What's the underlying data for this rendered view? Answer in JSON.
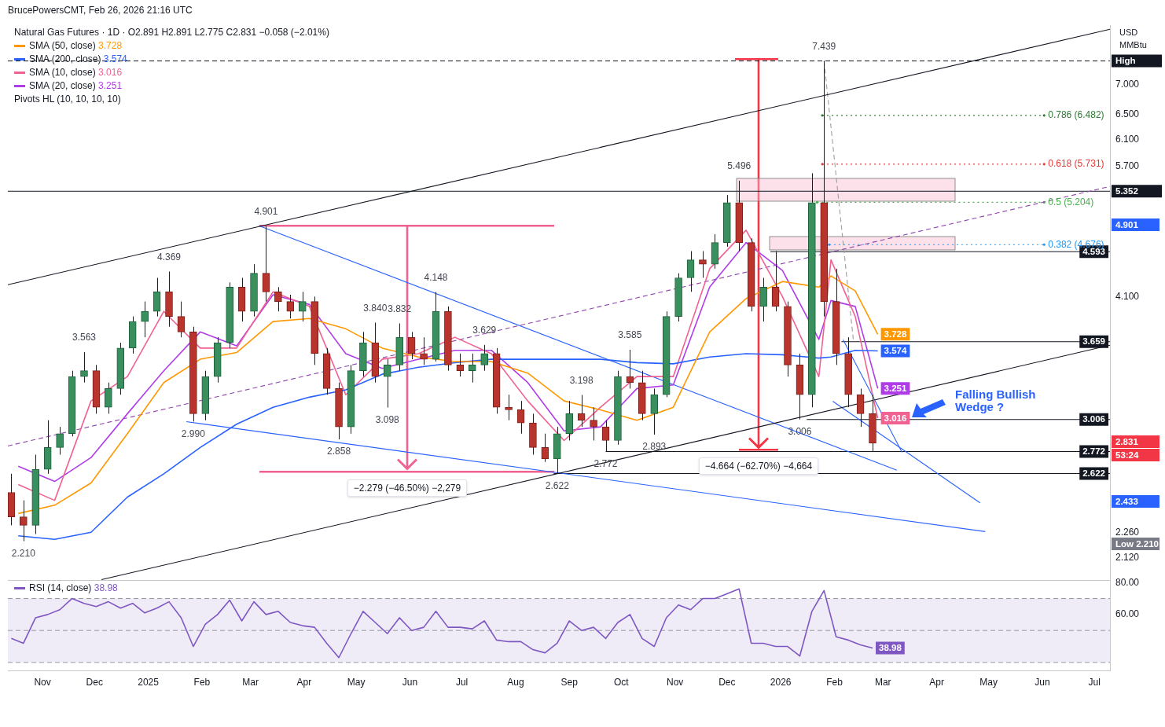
{
  "chart_data": [
    {
      "type": "candlestick",
      "title": "Natural Gas Futures · 1D · O2.891 H2.891 L2.775 C2.831 −0.058 (−2.01%)",
      "subtitle": "BrucePowersCMT, Feb 26, 2026 21:16 UTC",
      "ylabel": "USD MMBtu",
      "x": [
        "2024-10-14",
        "2024-10-21",
        "2024-10-28",
        "2024-11-04",
        "2024-11-11",
        "2024-11-18",
        "2024-11-25",
        "2024-12-02",
        "2024-12-09",
        "2024-12-16",
        "2024-12-23",
        "2024-12-30",
        "2025-01-06",
        "2025-01-13",
        "2025-01-20",
        "2025-01-27",
        "2025-02-03",
        "2025-02-10",
        "2025-02-17",
        "2025-02-24",
        "2025-03-03",
        "2025-03-10",
        "2025-03-17",
        "2025-03-24",
        "2025-03-31",
        "2025-04-07",
        "2025-04-14",
        "2025-04-21",
        "2025-04-28",
        "2025-05-05",
        "2025-05-12",
        "2025-05-19",
        "2025-05-26",
        "2025-06-02",
        "2025-06-09",
        "2025-06-16",
        "2025-06-23",
        "2025-06-30",
        "2025-07-07",
        "2025-07-14",
        "2025-07-21",
        "2025-07-28",
        "2025-08-04",
        "2025-08-11",
        "2025-08-18",
        "2025-08-25",
        "2025-09-01",
        "2025-09-08",
        "2025-09-15",
        "2025-09-22",
        "2025-09-29",
        "2025-10-06",
        "2025-10-13",
        "2025-10-20",
        "2025-10-27",
        "2025-11-03",
        "2025-11-10",
        "2025-11-17",
        "2025-11-24",
        "2025-12-01",
        "2025-12-08",
        "2025-12-15",
        "2025-12-22",
        "2025-12-29",
        "2026-01-05",
        "2026-01-12",
        "2026-01-19",
        "2026-01-26",
        "2026-02-02",
        "2026-02-09",
        "2026-02-16",
        "2026-02-23"
      ],
      "ohlc": [
        [
          2.5,
          2.62,
          2.3,
          2.35
        ],
        [
          2.35,
          2.45,
          2.21,
          2.3
        ],
        [
          2.3,
          2.75,
          2.25,
          2.65
        ],
        [
          2.65,
          3.0,
          2.62,
          2.8
        ],
        [
          2.8,
          2.95,
          2.75,
          2.9
        ],
        [
          2.9,
          3.4,
          2.88,
          3.35
        ],
        [
          3.35,
          3.563,
          3.3,
          3.4
        ],
        [
          3.4,
          3.45,
          3.05,
          3.1
        ],
        [
          3.1,
          3.3,
          3.05,
          3.25
        ],
        [
          3.25,
          3.65,
          3.2,
          3.6
        ],
        [
          3.6,
          3.9,
          3.55,
          3.85
        ],
        [
          3.85,
          4.05,
          3.7,
          3.95
        ],
        [
          3.95,
          4.3,
          3.9,
          4.15
        ],
        [
          4.15,
          4.369,
          3.8,
          3.9
        ],
        [
          3.9,
          4.05,
          3.7,
          3.75
        ],
        [
          3.75,
          3.8,
          2.99,
          3.05
        ],
        [
          3.05,
          3.4,
          3.0,
          3.35
        ],
        [
          3.35,
          3.7,
          3.3,
          3.65
        ],
        [
          3.65,
          4.25,
          3.6,
          4.2
        ],
        [
          4.2,
          4.3,
          3.85,
          3.95
        ],
        [
          3.95,
          4.45,
          3.9,
          4.35
        ],
        [
          4.35,
          4.901,
          4.05,
          4.15
        ],
        [
          4.15,
          4.2,
          3.95,
          4.05
        ],
        [
          4.05,
          4.12,
          3.88,
          3.95
        ],
        [
          3.95,
          4.15,
          3.85,
          4.05
        ],
        [
          4.05,
          4.1,
          3.45,
          3.55
        ],
        [
          3.55,
          3.6,
          3.2,
          3.25
        ],
        [
          3.25,
          3.3,
          2.858,
          2.95
        ],
        [
          2.95,
          3.45,
          2.9,
          3.4
        ],
        [
          3.4,
          3.75,
          3.35,
          3.65
        ],
        [
          3.65,
          3.84,
          3.3,
          3.35
        ],
        [
          3.35,
          3.5,
          3.098,
          3.45
        ],
        [
          3.45,
          3.832,
          3.4,
          3.7
        ],
        [
          3.7,
          3.75,
          3.5,
          3.55
        ],
        [
          3.55,
          3.7,
          3.45,
          3.5
        ],
        [
          3.5,
          4.148,
          3.48,
          3.95
        ],
        [
          3.95,
          4.0,
          3.4,
          3.45
        ],
        [
          3.45,
          3.55,
          3.35,
          3.4
        ],
        [
          3.4,
          3.55,
          3.3,
          3.45
        ],
        [
          3.45,
          3.629,
          3.4,
          3.55
        ],
        [
          3.55,
          3.6,
          3.05,
          3.1
        ],
        [
          3.1,
          3.2,
          3.0,
          3.08
        ],
        [
          3.08,
          3.15,
          2.9,
          2.98
        ],
        [
          2.98,
          3.05,
          2.75,
          2.8
        ],
        [
          2.8,
          2.9,
          2.7,
          2.72
        ],
        [
          2.72,
          2.95,
          2.622,
          2.9
        ],
        [
          2.9,
          3.15,
          2.85,
          3.05
        ],
        [
          3.05,
          3.198,
          2.95,
          3.0
        ],
        [
          3.0,
          3.1,
          2.85,
          2.95
        ],
        [
          2.95,
          3.0,
          2.772,
          2.85
        ],
        [
          2.85,
          3.4,
          2.82,
          3.35
        ],
        [
          3.35,
          3.585,
          3.25,
          3.3
        ],
        [
          3.3,
          3.4,
          3.0,
          3.05
        ],
        [
          3.05,
          3.25,
          2.893,
          3.2
        ],
        [
          3.2,
          3.95,
          3.18,
          3.9
        ],
        [
          3.9,
          4.35,
          3.85,
          4.3
        ],
        [
          4.3,
          4.6,
          4.15,
          4.5
        ],
        [
          4.5,
          4.6,
          4.3,
          4.45
        ],
        [
          4.45,
          4.8,
          4.4,
          4.7
        ],
        [
          4.7,
          5.3,
          4.65,
          5.2
        ],
        [
          5.2,
          5.496,
          4.6,
          4.7
        ],
        [
          4.7,
          4.75,
          3.95,
          4.0
        ],
        [
          4.0,
          4.3,
          3.85,
          4.2
        ],
        [
          4.2,
          4.6,
          3.95,
          4.0
        ],
        [
          4.0,
          4.05,
          3.35,
          3.45
        ],
        [
          3.45,
          3.55,
          3.006,
          3.2
        ],
        [
          3.2,
          5.6,
          3.1,
          5.2
        ],
        [
          5.2,
          7.439,
          3.9,
          4.05
        ],
        [
          4.05,
          4.4,
          3.45,
          3.55
        ],
        [
          3.55,
          3.7,
          3.1,
          3.2
        ],
        [
          3.2,
          3.25,
          2.95,
          3.05
        ],
        [
          3.05,
          3.2,
          2.775,
          2.831
        ]
      ],
      "series": [
        {
          "name": "SMA (50, close)",
          "type": "line",
          "color": "#ff9800",
          "x": [
            "2024-10-18",
            "2024-11-08",
            "2024-11-29",
            "2024-12-20",
            "2025-01-10",
            "2025-01-31",
            "2025-02-21",
            "2025-03-14",
            "2025-04-04",
            "2025-04-25",
            "2025-05-16",
            "2025-06-06",
            "2025-06-27",
            "2025-07-18",
            "2025-08-08",
            "2025-08-29",
            "2025-09-19",
            "2025-10-10",
            "2025-10-31",
            "2025-11-21",
            "2025-12-12",
            "2026-01-02",
            "2026-01-23",
            "2026-01-30",
            "2026-02-13",
            "2026-02-26"
          ],
          "values": [
            2.37,
            2.42,
            2.56,
            2.9,
            3.3,
            3.5,
            3.56,
            3.85,
            3.88,
            3.78,
            3.6,
            3.52,
            3.48,
            3.48,
            3.38,
            3.15,
            3.08,
            3.0,
            3.1,
            3.75,
            4.08,
            4.26,
            4.2,
            4.32,
            4.16,
            3.728
          ],
          "value_labels": [
            null,
            null,
            null,
            null,
            null,
            null,
            null,
            null,
            null,
            null,
            null,
            null,
            null,
            null,
            null,
            null,
            null,
            null,
            null,
            null,
            null,
            null,
            null,
            null,
            null,
            "3.728"
          ]
        },
        {
          "name": "SMA (200, close)",
          "type": "line",
          "color": "#2962ff",
          "x": [
            "2024-10-18",
            "2024-11-08",
            "2024-11-29",
            "2024-12-20",
            "2025-01-10",
            "2025-01-31",
            "2025-02-21",
            "2025-03-14",
            "2025-04-04",
            "2025-04-25",
            "2025-05-16",
            "2025-06-06",
            "2025-06-27",
            "2025-07-18",
            "2025-08-08",
            "2025-08-29",
            "2025-09-19",
            "2025-10-10",
            "2025-10-31",
            "2025-11-21",
            "2025-12-12",
            "2026-01-02",
            "2026-01-23",
            "2026-01-30",
            "2026-02-13",
            "2026-02-26"
          ],
          "values": [
            2.24,
            2.22,
            2.26,
            2.47,
            2.62,
            2.8,
            2.97,
            3.1,
            3.18,
            3.24,
            3.37,
            3.43,
            3.47,
            3.5,
            3.5,
            3.5,
            3.5,
            3.47,
            3.46,
            3.52,
            3.55,
            3.54,
            3.51,
            3.52,
            3.58,
            3.574
          ],
          "value_labels": [
            null,
            null,
            null,
            null,
            null,
            null,
            null,
            null,
            null,
            null,
            null,
            null,
            null,
            null,
            null,
            null,
            null,
            null,
            null,
            null,
            null,
            null,
            null,
            null,
            null,
            "3.574"
          ]
        },
        {
          "name": "SMA (10, close)",
          "type": "line",
          "color": "#f06292",
          "x": [
            "2024-10-18",
            "2024-11-08",
            "2024-11-29",
            "2024-12-20",
            "2025-01-10",
            "2025-01-31",
            "2025-02-21",
            "2025-03-14",
            "2025-04-04",
            "2025-04-25",
            "2025-05-16",
            "2025-06-06",
            "2025-06-27",
            "2025-07-18",
            "2025-08-08",
            "2025-08-29",
            "2025-09-19",
            "2025-10-10",
            "2025-10-31",
            "2025-11-21",
            "2025-12-12",
            "2026-01-02",
            "2026-01-23",
            "2026-01-30",
            "2026-02-13",
            "2026-02-26"
          ],
          "values": [
            2.55,
            2.45,
            3.15,
            3.35,
            3.95,
            3.6,
            3.6,
            4.15,
            4.0,
            3.2,
            3.5,
            3.55,
            3.7,
            3.55,
            3.15,
            2.85,
            3.1,
            3.35,
            3.35,
            4.4,
            4.85,
            4.1,
            3.35,
            4.5,
            3.9,
            3.016
          ],
          "value_labels": [
            null,
            null,
            null,
            null,
            null,
            null,
            null,
            null,
            null,
            null,
            null,
            null,
            null,
            null,
            null,
            null,
            null,
            null,
            null,
            null,
            null,
            null,
            null,
            null,
            null,
            "3.016"
          ]
        },
        {
          "name": "SMA (20, close)",
          "type": "line",
          "color": "#b03ce8",
          "x": [
            "2024-10-18",
            "2024-11-08",
            "2024-11-29",
            "2024-12-20",
            "2025-01-10",
            "2025-01-31",
            "2025-02-21",
            "2025-03-14",
            "2025-04-04",
            "2025-04-25",
            "2025-05-16",
            "2025-06-06",
            "2025-06-27",
            "2025-07-18",
            "2025-08-08",
            "2025-08-29",
            "2025-09-19",
            "2025-10-10",
            "2025-10-31",
            "2025-11-21",
            "2025-12-12",
            "2026-01-02",
            "2026-01-23",
            "2026-01-30",
            "2026-02-13",
            "2026-02-26"
          ],
          "values": [
            2.67,
            2.57,
            2.73,
            3.05,
            3.4,
            3.75,
            3.62,
            4.12,
            4.02,
            3.55,
            3.42,
            3.5,
            3.58,
            3.58,
            3.3,
            2.92,
            2.95,
            3.25,
            3.28,
            4.2,
            4.7,
            4.38,
            3.68,
            4.06,
            4.0,
            3.251
          ],
          "value_labels": [
            null,
            null,
            null,
            null,
            null,
            null,
            null,
            null,
            null,
            null,
            null,
            null,
            null,
            null,
            null,
            null,
            null,
            null,
            null,
            null,
            null,
            null,
            null,
            null,
            null,
            "3.251"
          ]
        },
        {
          "type": "line",
          "color": "#131722",
          "x": [
            "2024-10-12",
            "2026-07-10"
          ],
          "values": [
            4.225,
            8.06
          ]
        },
        {
          "type": "line",
          "color": "#131722",
          "x": [
            "2024-12-05",
            "2026-07-10"
          ],
          "values": [
            2.005,
            3.626
          ]
        },
        {
          "type": "line",
          "color": "#8e44ad",
          "line_style": "dashed",
          "x": [
            "2024-10-12",
            "2026-07-10"
          ],
          "values": [
            2.811,
            5.417
          ]
        },
        {
          "type": "line",
          "color": "#2962ff",
          "x": [
            "2025-03-06",
            "2026-03-09"
          ],
          "values": [
            4.904,
            2.644
          ]
        },
        {
          "type": "line",
          "color": "#2962ff",
          "x": [
            "2025-01-23",
            "2026-04-29"
          ],
          "values": [
            2.989,
            2.264
          ]
        },
        {
          "type": "line",
          "color": "#2962ff",
          "x": [
            "2026-01-31",
            "2026-04-26"
          ],
          "values": [
            3.148,
            2.435
          ]
        },
        {
          "type": "line",
          "color": "#2962ff",
          "x": [
            "2026-02-06",
            "2026-03-12"
          ],
          "values": [
            3.677,
            2.767
          ]
        },
        {
          "type": "line",
          "color": "#9e9e9e",
          "line_style": "dashed",
          "x": [
            "2026-01-26",
            "2026-02-12"
          ],
          "values": [
            7.439,
            3.66
          ]
        },
        {
          "type": "line",
          "color": "#131722",
          "x": [
            "2025-12-26",
            "2026-07-10"
          ],
          "values": [
            4.593,
            4.593
          ],
          "value_labels": [
            null,
            "4.593"
          ]
        },
        {
          "type": "line",
          "color": "#131722",
          "x": [
            "2026-02-05",
            "2026-07-10"
          ],
          "values": [
            3.659,
            3.659
          ],
          "value_labels": [
            null,
            "3.659"
          ]
        },
        {
          "type": "line",
          "color": "#131722",
          "x": [
            "2026-01-16",
            "2026-07-10"
          ],
          "values": [
            3.006,
            3.006
          ],
          "value_labels": [
            null,
            "3.006"
          ]
        },
        {
          "type": "line",
          "color": "#131722",
          "x": [
            "2025-09-22",
            "2026-07-10"
          ],
          "values": [
            2.772,
            2.772
          ],
          "value_labels": [
            null,
            "2.772"
          ]
        },
        {
          "type": "line",
          "color": "#131722",
          "x": [
            "2025-08-23",
            "2026-07-10"
          ],
          "values": [
            2.622,
            2.622
          ],
          "value_labels": [
            null,
            "2.622"
          ]
        },
        {
          "type": "line",
          "color": "#2e7d32",
          "line_style": "dotted",
          "x": [
            "2026-01-25",
            "2026-06-02"
          ],
          "values": [
            6.482,
            6.482
          ],
          "value_labels": [
            null,
            "0.786 (6.482)"
          ]
        },
        {
          "type": "line",
          "color": "#e53935",
          "line_style": "dotted",
          "x": [
            "2026-01-25",
            "2026-06-02"
          ],
          "values": [
            5.731,
            5.731
          ],
          "value_labels": [
            null,
            "0.618 (5.731)"
          ]
        },
        {
          "type": "line",
          "color": "#4caf50",
          "line_style": "dotted",
          "x": [
            "2026-01-22",
            "2026-06-02"
          ],
          "values": [
            5.204,
            5.204
          ],
          "value_labels": [
            null,
            "0.5 (5.204)"
          ]
        },
        {
          "type": "line",
          "color": "#2196f3",
          "line_style": "dotted",
          "x": [
            "2026-01-29",
            "2026-06-02"
          ],
          "values": [
            4.676,
            4.676
          ],
          "value_labels": [
            null,
            "0.382 (4.676)"
          ]
        }
      ],
      "ref_lines": [
        {
          "axis": "y",
          "value": 7.439,
          "label": "High",
          "color": "#131722",
          "line_style": "dashed"
        },
        {
          "axis": "y",
          "value": 5.352,
          "label": "5.352",
          "color": "#131722",
          "line_style": "solid"
        }
      ],
      "annotations": [
        "Pivots HL (10, 10, 10, 10)",
        "−2.279 (−46.50%) −2,279",
        "−4.664 (−62.70%) −4,664",
        "Falling Bullish Wedge ?",
        "4.901",
        "2.831",
        "53:24",
        "2.433",
        "Low 2.210",
        {
          "text": "2.210",
          "x": "2024-10-21",
          "y": 2.21
        },
        {
          "text": "3.563",
          "x": "2024-11-25",
          "y": 3.563
        },
        {
          "text": "4.369",
          "x": "2025-01-13",
          "y": 4.369
        },
        {
          "text": "2.990",
          "x": "2025-01-27",
          "y": 2.99
        },
        {
          "text": "4.901",
          "x": "2025-03-10",
          "y": 4.901
        },
        {
          "text": "2.858",
          "x": "2025-04-21",
          "y": 2.858
        },
        {
          "text": "3.840",
          "x": "2025-05-12",
          "y": 3.84
        },
        {
          "text": "3.098",
          "x": "2025-05-19",
          "y": 3.098
        },
        {
          "text": "3.832",
          "x": "2025-05-26",
          "y": 3.832
        },
        {
          "text": "4.148",
          "x": "2025-06-16",
          "y": 4.148
        },
        {
          "text": "3.629",
          "x": "2025-07-14",
          "y": 3.629
        },
        {
          "text": "2.622",
          "x": "2025-08-25",
          "y": 2.622
        },
        {
          "text": "3.198",
          "x": "2025-09-08",
          "y": 3.198
        },
        {
          "text": "2.772",
          "x": "2025-09-22",
          "y": 2.772
        },
        {
          "text": "3.585",
          "x": "2025-10-06",
          "y": 3.585
        },
        {
          "text": "2.893",
          "x": "2025-10-20",
          "y": 2.893
        },
        {
          "text": "5.496",
          "x": "2025-12-08",
          "y": 5.496
        },
        {
          "text": "3.006",
          "x": "2026-01-12",
          "y": 3.006
        },
        {
          "text": "7.439",
          "x": "2026-01-26",
          "y": 7.439
        }
      ],
      "xlim": [
        "2024-10-12",
        "2026-07-10"
      ],
      "ylim": [
        2.0,
        8.14
      ],
      "yticks": [
        {
          "value": 7,
          "label": "7.000"
        },
        {
          "value": 6.5,
          "label": "6.500"
        },
        {
          "value": 6.1,
          "label": "6.100"
        },
        {
          "value": 5.7,
          "label": "5.700"
        },
        {
          "value": 4.1,
          "label": "4.100"
        },
        {
          "value": 2.26,
          "label": "2.260"
        },
        {
          "value": 2.12,
          "label": "2.120"
        }
      ],
      "log": true,
      "grid": false,
      "legend": "top left",
      "tick_labels": "y"
    },
    {
      "type": "line",
      "x": [
        "2024-10-14",
        "2024-10-21",
        "2024-10-28",
        "2024-11-04",
        "2024-11-11",
        "2024-11-18",
        "2024-11-25",
        "2024-12-02",
        "2024-12-09",
        "2024-12-16",
        "2024-12-23",
        "2024-12-30",
        "2025-01-06",
        "2025-01-13",
        "2025-01-20",
        "2025-01-27",
        "2025-02-03",
        "2025-02-10",
        "2025-02-17",
        "2025-02-24",
        "2025-03-03",
        "2025-03-10",
        "2025-03-17",
        "2025-03-24",
        "2025-03-31",
        "2025-04-07",
        "2025-04-14",
        "2025-04-21",
        "2025-04-28",
        "2025-05-05",
        "2025-05-12",
        "2025-05-19",
        "2025-05-26",
        "2025-06-02",
        "2025-06-09",
        "2025-06-16",
        "2025-06-23",
        "2025-06-30",
        "2025-07-07",
        "2025-07-14",
        "2025-07-21",
        "2025-07-28",
        "2025-08-04",
        "2025-08-11",
        "2025-08-18",
        "2025-08-25",
        "2025-09-01",
        "2025-09-08",
        "2025-09-15",
        "2025-09-22",
        "2025-09-29",
        "2025-10-06",
        "2025-10-13",
        "2025-10-20",
        "2025-10-27",
        "2025-11-03",
        "2025-11-10",
        "2025-11-17",
        "2025-11-24",
        "2025-12-01",
        "2025-12-08",
        "2025-12-15",
        "2025-12-22",
        "2025-12-29",
        "2026-01-05",
        "2026-01-12",
        "2026-01-19",
        "2026-01-26",
        "2026-02-02",
        "2026-02-09",
        "2026-02-16",
        "2026-02-23"
      ],
      "series": [
        {
          "name": "RSI (14, close)",
          "color": "#7e57c2",
          "values": [
            45,
            42,
            58,
            60,
            63,
            70,
            67,
            65,
            68,
            64,
            67,
            61,
            64,
            68,
            58,
            40,
            54,
            60,
            69,
            56,
            68,
            60,
            62,
            55,
            53,
            52,
            42,
            33,
            48,
            62,
            55,
            48,
            58,
            50,
            52,
            62,
            52,
            52,
            51,
            56,
            44,
            43,
            43,
            38,
            36,
            42,
            56,
            50,
            52,
            45,
            55,
            60,
            45,
            40,
            58,
            66,
            63,
            70,
            70,
            73,
            76,
            42,
            42,
            40,
            40,
            34,
            62,
            75,
            46,
            44,
            41,
            38.98
          ],
          "value_labels": [
            null,
            null,
            null,
            null,
            null,
            null,
            null,
            null,
            null,
            null,
            null,
            null,
            null,
            null,
            null,
            null,
            null,
            null,
            null,
            null,
            null,
            null,
            null,
            null,
            null,
            null,
            null,
            null,
            null,
            null,
            null,
            null,
            null,
            null,
            null,
            null,
            null,
            null,
            null,
            null,
            null,
            null,
            null,
            null,
            null,
            null,
            null,
            null,
            null,
            null,
            null,
            null,
            null,
            null,
            null,
            null,
            null,
            null,
            null,
            null,
            null,
            null,
            null,
            null,
            null,
            null,
            null,
            null,
            null,
            null,
            null,
            "38.98"
          ]
        }
      ],
      "bands": [
        {
          "axis": "y",
          "from": 30,
          "to": 70,
          "color": "#efebf7"
        }
      ],
      "ref_lines": [
        {
          "axis": "y",
          "value": 70,
          "color": "#9598a1",
          "line_style": "dashed"
        },
        {
          "axis": "y",
          "value": 50,
          "color": "#9598a1",
          "line_style": "dashed"
        },
        {
          "axis": "y",
          "value": 30,
          "color": "#9598a1",
          "line_style": "dashed"
        }
      ],
      "xlim": [
        "2024-10-12",
        "2026-07-10"
      ],
      "xticks": [
        {
          "value": "2024-11-01",
          "label": "Nov"
        },
        {
          "value": "2024-12-01",
          "label": "Dec"
        },
        {
          "value": "2025-01-01",
          "label": "2025"
        },
        {
          "value": "2025-02-01",
          "label": "Feb"
        },
        {
          "value": "2025-03-01",
          "label": "Mar"
        },
        {
          "value": "2025-04-01",
          "label": "Apr"
        },
        {
          "value": "2025-05-01",
          "label": "May"
        },
        {
          "value": "2025-06-01",
          "label": "Jun"
        },
        {
          "value": "2025-07-01",
          "label": "Jul"
        },
        {
          "value": "2025-08-01",
          "label": "Aug"
        },
        {
          "value": "2025-09-01",
          "label": "Sep"
        },
        {
          "value": "2025-10-01",
          "label": "Oct"
        },
        {
          "value": "2025-11-01",
          "label": "Nov"
        },
        {
          "value": "2025-12-01",
          "label": "Dec"
        },
        {
          "value": "2026-01-01",
          "label": "2026"
        },
        {
          "value": "2026-02-01",
          "label": "Feb"
        },
        {
          "value": "2026-03-01",
          "label": "Mar"
        },
        {
          "value": "2026-04-01",
          "label": "Apr"
        },
        {
          "value": "2026-05-01",
          "label": "May"
        },
        {
          "value": "2026-06-01",
          "label": "Jun"
        },
        {
          "value": "2026-07-01",
          "label": "Jul"
        }
      ],
      "ylim": [
        25,
        81
      ],
      "yticks": [
        {
          "value": 80,
          "label": "80.00"
        },
        {
          "value": 60,
          "label": "60.00"
        }
      ],
      "grid": false,
      "legend": "top left"
    }
  ]
}
